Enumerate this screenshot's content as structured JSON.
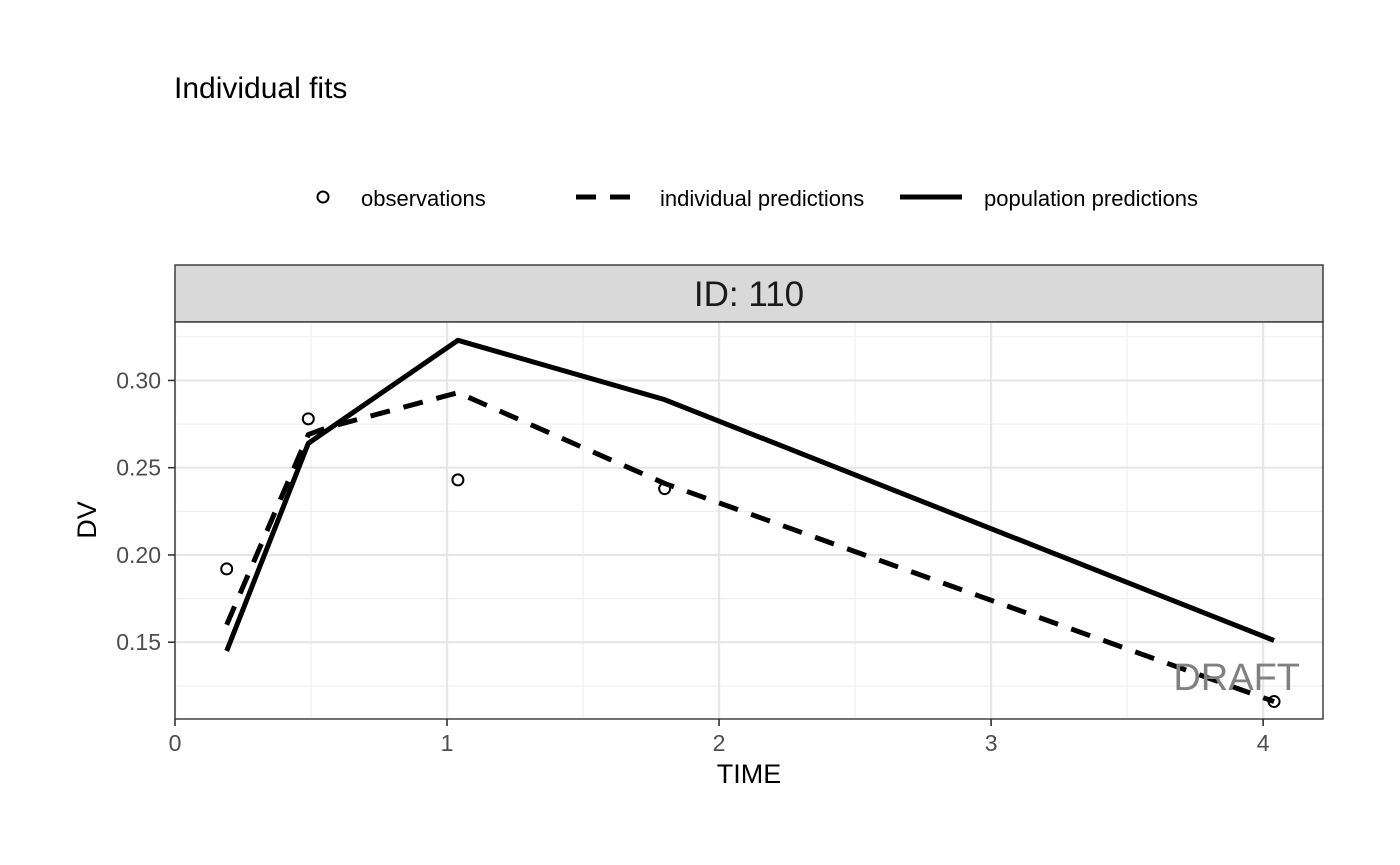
{
  "chart_data": {
    "type": "line",
    "title": "Individual fits",
    "panel_label": "ID: 110",
    "xlabel": "TIME",
    "ylabel": "DV",
    "xlim": [
      0,
      4.22
    ],
    "ylim": [
      0.106,
      0.3335
    ],
    "x_ticks": [
      0,
      1,
      2,
      3,
      4
    ],
    "x_tick_labels": [
      "0",
      "1",
      "2",
      "3",
      "4"
    ],
    "y_ticks": [
      0.15,
      0.2,
      0.25,
      0.3
    ],
    "y_tick_labels": [
      "0.15",
      "0.20",
      "0.25",
      "0.30"
    ],
    "grid": true,
    "legend_position": "top",
    "watermark": "DRAFT",
    "legend": {
      "observations": "observations",
      "individual": "individual predictions",
      "population": "population predictions"
    },
    "observations": {
      "x": [
        0.19,
        0.49,
        1.04,
        1.8,
        4.04
      ],
      "y": [
        0.192,
        0.278,
        0.243,
        0.238,
        0.116
      ]
    },
    "individual_predictions": {
      "x": [
        0.19,
        0.49,
        0.56,
        1.04,
        1.8,
        4.04
      ],
      "y": [
        0.16,
        0.269,
        0.273,
        0.293,
        0.241,
        0.116
      ]
    },
    "population_predictions": {
      "x": [
        0.19,
        0.49,
        1.04,
        1.8,
        4.04
      ],
      "y": [
        0.145,
        0.264,
        0.323,
        0.289,
        0.151
      ]
    }
  }
}
